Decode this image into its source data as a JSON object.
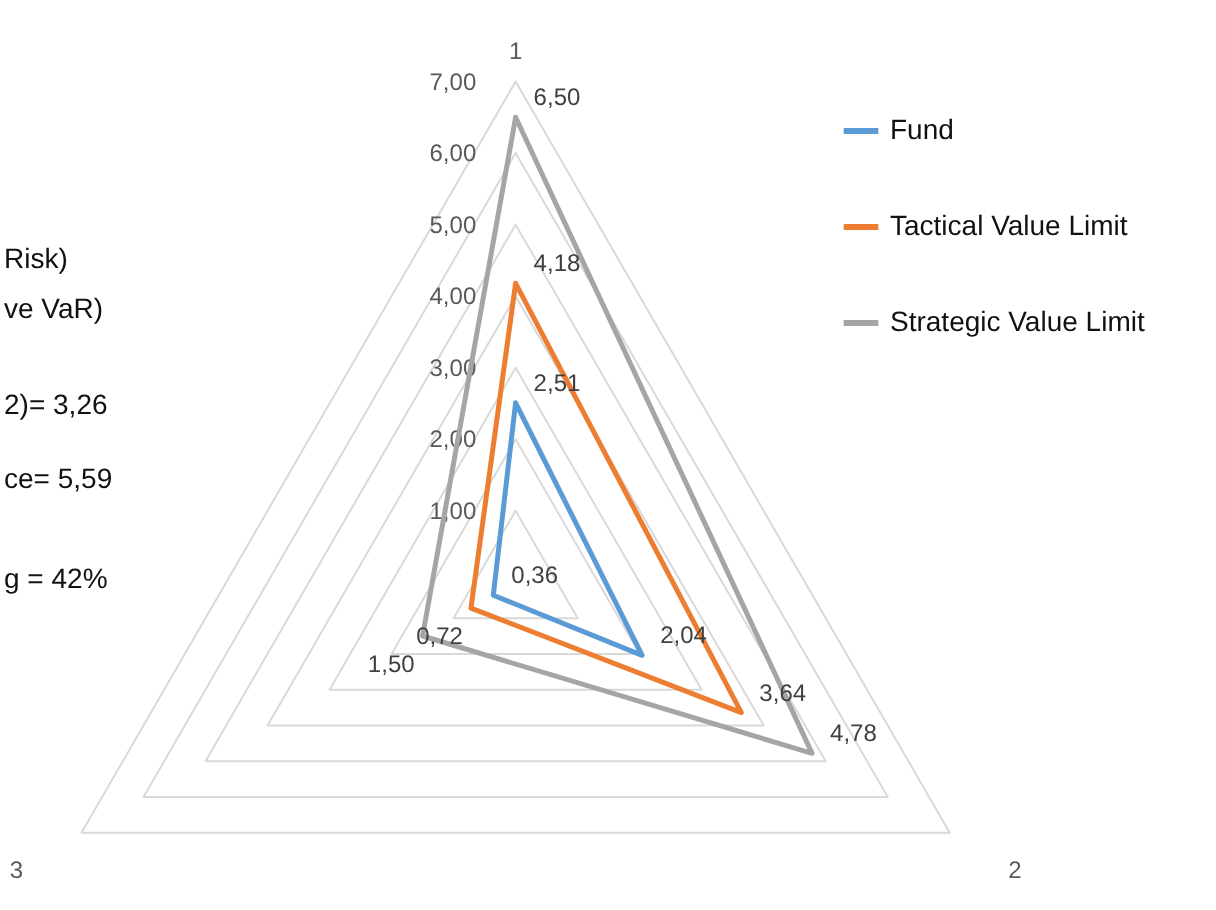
{
  "chart_data": {
    "type": "radar",
    "categories": [
      "1",
      "2",
      "3"
    ],
    "series": [
      {
        "name": "Fund",
        "color": "#5b9bd5",
        "values": [
          2.51,
          2.04,
          0.36
        ],
        "value_labels": [
          "2,51",
          "2,04",
          "0,36"
        ]
      },
      {
        "name": "Tactical Value Limit",
        "color": "#ed7d31",
        "values": [
          4.18,
          3.64,
          0.72
        ],
        "value_labels": [
          "4,18",
          "3,64",
          "0,72"
        ]
      },
      {
        "name": "Strategic Value Limit",
        "color": "#a5a5a5",
        "values": [
          6.5,
          4.78,
          1.5
        ],
        "value_labels": [
          "6,50",
          "4,78",
          "1,50"
        ]
      }
    ],
    "ylim": [
      0,
      7
    ],
    "yticks": [
      {
        "value": 1,
        "label": "1,00"
      },
      {
        "value": 2,
        "label": "2,00"
      },
      {
        "value": 3,
        "label": "3,00"
      },
      {
        "value": 4,
        "label": "4,00"
      },
      {
        "value": 5,
        "label": "5,00"
      },
      {
        "value": 6,
        "label": "6,00"
      },
      {
        "value": 7,
        "label": "7,00"
      }
    ],
    "grid": true,
    "legend": "right",
    "annotations": [
      "Risk)",
      "ve VaR)",
      "2)= 3,26",
      "ce= 5,59",
      "g = 42%"
    ]
  }
}
